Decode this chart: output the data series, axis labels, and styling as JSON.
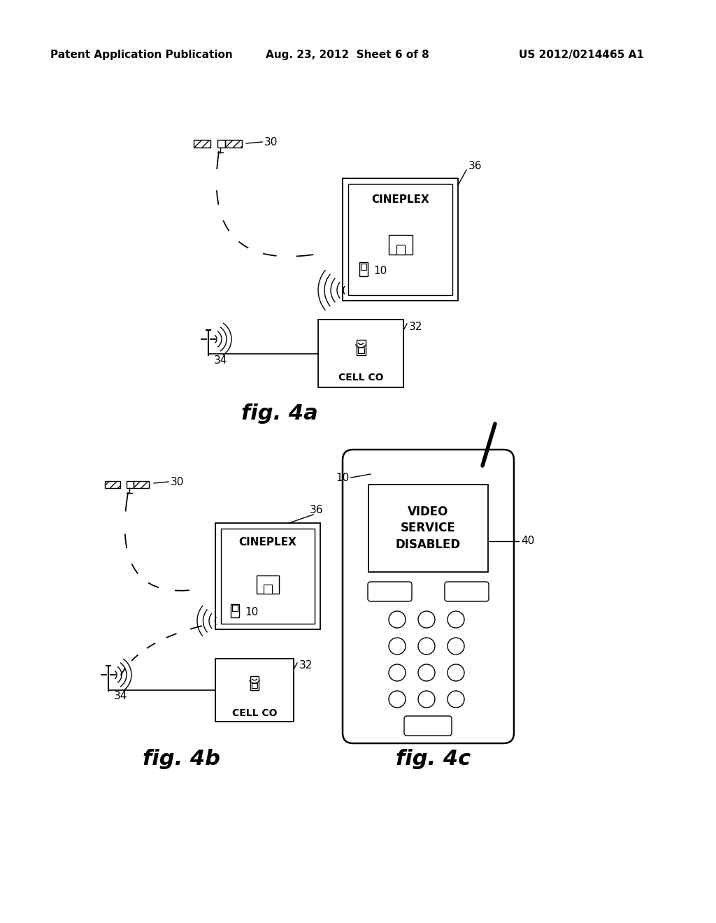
{
  "bg_color": "#ffffff",
  "header_text": "Patent Application Publication",
  "header_date": "Aug. 23, 2012  Sheet 6 of 8",
  "header_patent": "US 2012/0214465 A1",
  "fig4a_label": "fig. 4a",
  "fig4b_label": "fig. 4b",
  "fig4c_label": "fig. 4c",
  "cineplex_label": "CINEPLEX",
  "cellco_label": "CELL CO",
  "video_disabled_label": "VIDEO\nSERVICE\nDISABLED",
  "label_30": "30",
  "label_32": "32",
  "label_34": "34",
  "label_36": "36",
  "label_10": "10",
  "label_40": "40"
}
